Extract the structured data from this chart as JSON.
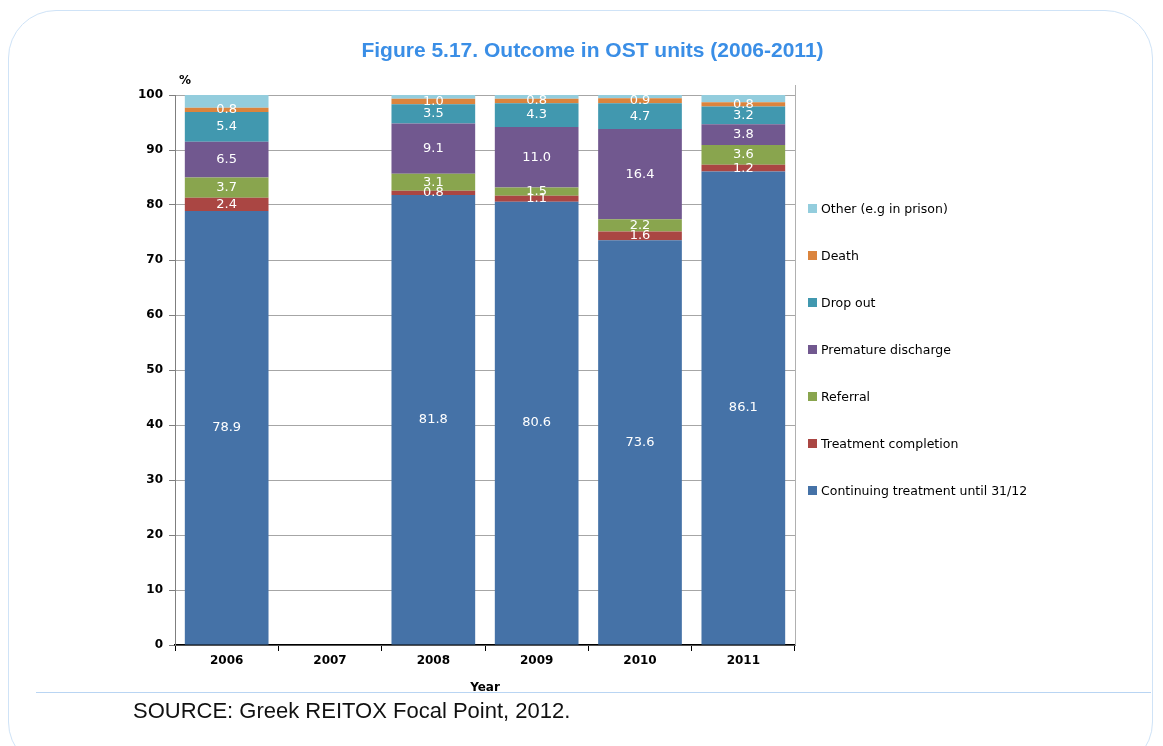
{
  "chart_data": {
    "type": "bar",
    "title": "Figure 5.17. Outcome in OST units (2006-2011)",
    "xlabel": "Year",
    "ylabel": "%",
    "categories": [
      "2006",
      "2007",
      "2008",
      "2009",
      "2010",
      "2011"
    ],
    "stacked": true,
    "series": [
      {
        "name": "Continuing treatment until 31/12",
        "color": "#4572a7",
        "values": [
          78.9,
          null,
          81.8,
          80.6,
          73.6,
          86.1
        ],
        "value_labels": [
          "78.9",
          null,
          "81.8",
          "80.6",
          "73.6",
          "86.1"
        ]
      },
      {
        "name": "Treatment completion",
        "color": "#aa4643",
        "values": [
          2.4,
          null,
          0.8,
          1.1,
          1.6,
          1.2
        ],
        "value_labels": [
          "2.4",
          null,
          "0.8",
          "1.1",
          "1.6",
          "1.2"
        ]
      },
      {
        "name": "Referral",
        "color": "#89a54e",
        "values": [
          3.7,
          null,
          3.1,
          1.5,
          2.2,
          3.6
        ],
        "value_labels": [
          "3.7",
          null,
          "3.1",
          "1.5",
          "2.2",
          "3.6"
        ]
      },
      {
        "name": "Premature discharge",
        "color": "#71588f",
        "values": [
          6.5,
          null,
          9.1,
          11.0,
          16.4,
          3.8
        ],
        "value_labels": [
          "6.5",
          null,
          "9.1",
          "11.0",
          "16.4",
          "3.8"
        ]
      },
      {
        "name": "Drop out",
        "color": "#4198af",
        "values": [
          5.4,
          null,
          3.5,
          4.3,
          4.7,
          3.2
        ],
        "value_labels": [
          "5.4",
          null,
          "3.5",
          "4.3",
          "4.7",
          "3.2"
        ]
      },
      {
        "name": "Death",
        "color": "#db843d",
        "values": [
          0.8,
          null,
          1.0,
          0.8,
          0.9,
          0.8
        ],
        "value_labels": [
          "0.8",
          null,
          "1.0",
          "0.8",
          "0.9",
          "0.8"
        ]
      },
      {
        "name": "Other (e.g in prison)",
        "color": "#93cddd",
        "values": [
          2.3,
          null,
          0.7,
          0.7,
          0.6,
          1.3
        ]
      }
    ],
    "ylim": [
      0,
      100
    ],
    "yticks": [
      0,
      10,
      20,
      30,
      40,
      50,
      60,
      70,
      80,
      90,
      100
    ],
    "grid": "y",
    "legend": "right",
    "annotations": [
      "SOURCE: Greek REITOX Focal Point, 2012."
    ]
  }
}
